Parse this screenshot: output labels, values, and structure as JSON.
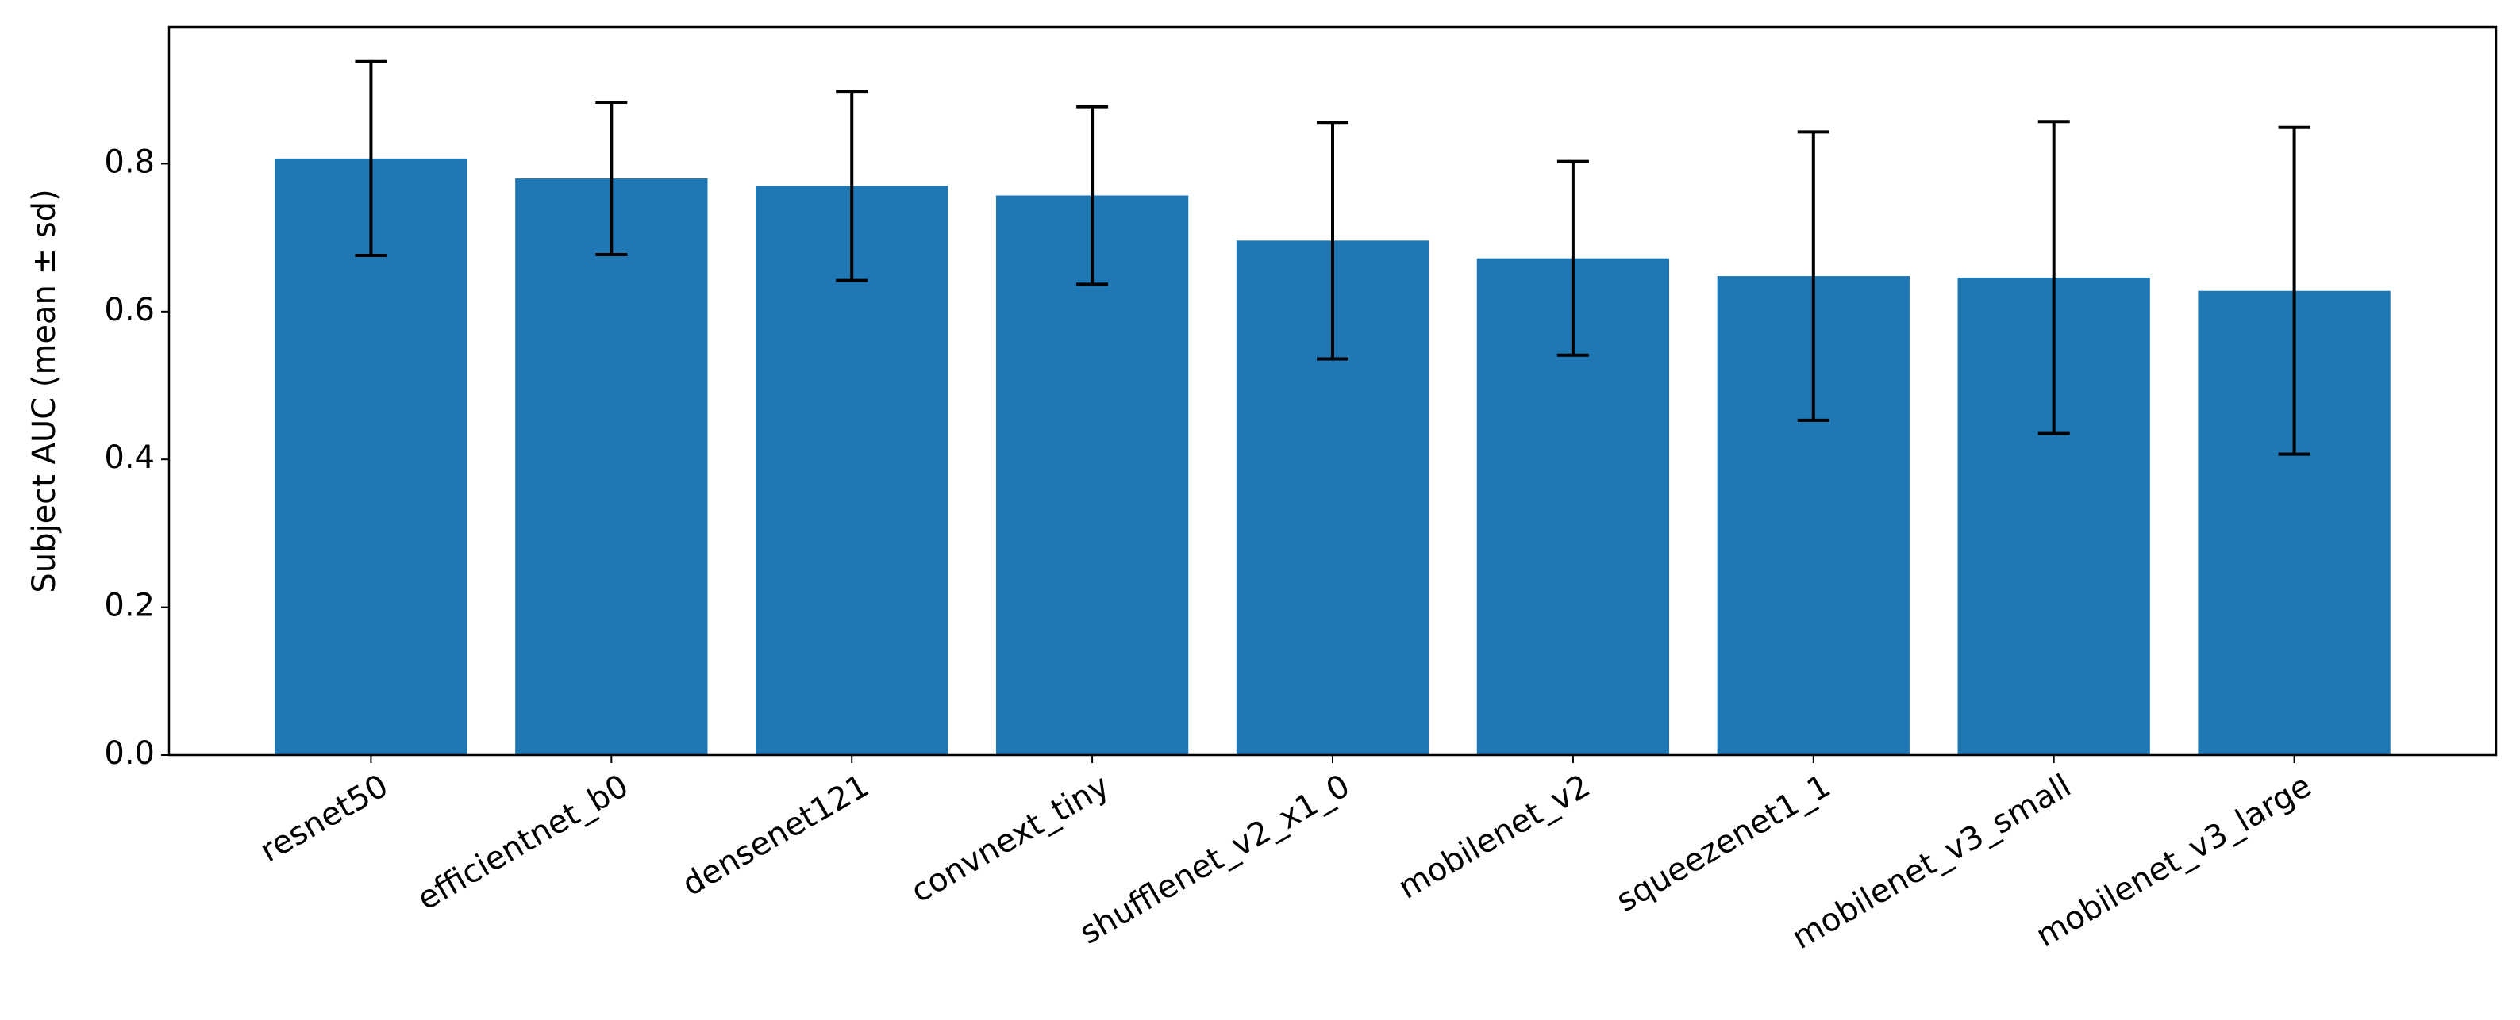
{
  "chart_data": {
    "type": "bar",
    "y_label": "Subject AUC (mean ± sd)",
    "categories": [
      "resnet50",
      "efficientnet_b0",
      "densenet121",
      "convnext_tiny",
      "shufflenet_v2_x1_0",
      "mobilenet_v2",
      "squeezenet1_1",
      "mobilenet_v3_small",
      "mobilenet_v3_large"
    ],
    "values": [
      0.807,
      0.78,
      0.77,
      0.757,
      0.696,
      0.672,
      0.648,
      0.646,
      0.628
    ],
    "errors": [
      0.131,
      0.103,
      0.128,
      0.12,
      0.16,
      0.131,
      0.195,
      0.211,
      0.221
    ],
    "color": "#1f77b4",
    "ylim": [
      0,
      0.985
    ],
    "yticks": [
      {
        "value": 0,
        "label": "0.0"
      },
      {
        "value": 0.2,
        "label": "0.2"
      },
      {
        "value": 0.4,
        "label": "0.4"
      },
      {
        "value": 0.6,
        "label": "0.6"
      },
      {
        "value": 0.8,
        "label": "0.8"
      }
    ]
  }
}
